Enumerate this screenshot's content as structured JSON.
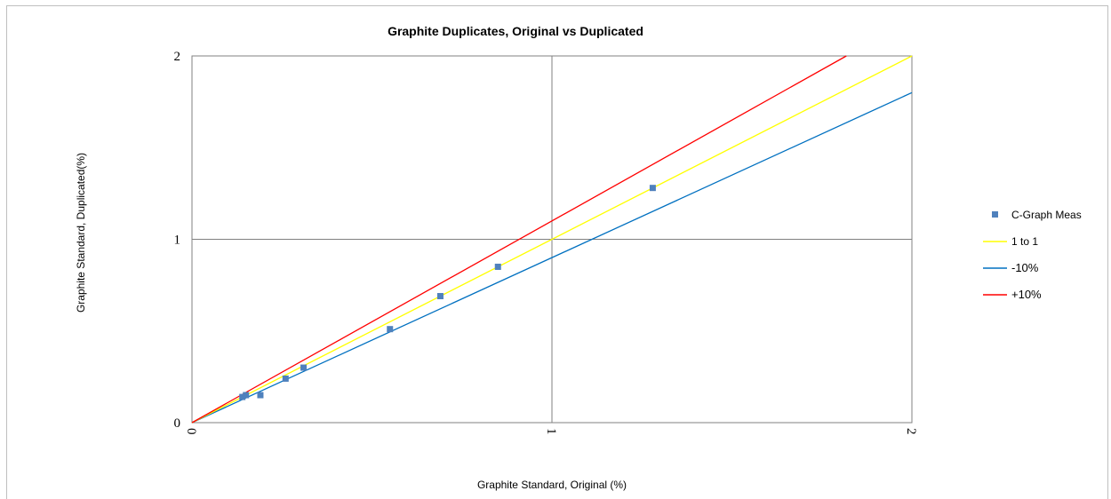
{
  "chart_data": {
    "type": "scatter",
    "title": "Graphite Duplicates, Original vs Duplicated",
    "xlabel": "Graphite Standard, Original (%)",
    "ylabel": "Graphite Standard, Duplicated(%)",
    "xlim": [
      0,
      2
    ],
    "ylim": [
      0,
      2
    ],
    "x_ticks": [
      "0",
      "1",
      "2"
    ],
    "y_ticks": [
      "0",
      "1",
      "2"
    ],
    "grid": true,
    "legend_position": "right",
    "series": [
      {
        "name": "C-Graph Meas",
        "kind": "points",
        "color": "#4f81bd",
        "x": [
          0.14,
          0.15,
          0.19,
          0.26,
          0.31,
          0.55,
          0.69,
          0.85,
          1.28
        ],
        "y": [
          0.14,
          0.15,
          0.15,
          0.24,
          0.3,
          0.51,
          0.69,
          0.85,
          1.28
        ]
      },
      {
        "name": "1 to 1",
        "kind": "line",
        "color": "#ffff00",
        "x": [
          0,
          2
        ],
        "y": [
          0,
          2
        ]
      },
      {
        "name": "-10%",
        "kind": "line",
        "color": "#0070c0",
        "x": [
          0,
          2
        ],
        "y": [
          0,
          1.8
        ]
      },
      {
        "name": "+10%",
        "kind": "line",
        "color": "#ff0000",
        "x": [
          0,
          1.818
        ],
        "y": [
          0,
          2
        ]
      }
    ]
  }
}
